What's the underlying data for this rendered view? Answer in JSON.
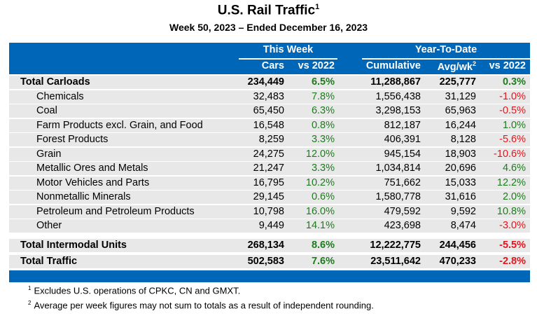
{
  "title": "U.S. Rail Traffic",
  "title_sup": "1",
  "subtitle": "Week 50, 2023 – Ended December 16, 2023",
  "header": {
    "this_week": "This Week",
    "ytd": "Year-To-Date",
    "cars": "Cars",
    "vs2022": "vs 2022",
    "cumulative": "Cumulative",
    "avg": "Avg/wk",
    "avg_sup": "2",
    "vs2022_ytd": "vs 2022"
  },
  "colors": {
    "header": "#0066b8",
    "positive": "#1e7b1e",
    "negative": "#e8141c",
    "row": "#e8e8e8"
  },
  "rows": [
    {
      "label": "Total Carloads",
      "cars": "234,449",
      "vs": "6.5%",
      "cum": "11,288,867",
      "avg": "225,777",
      "vsy": "0.3%"
    },
    {
      "label": "Chemicals",
      "cars": "32,483",
      "vs": "7.8%",
      "cum": "1,556,438",
      "avg": "31,129",
      "vsy": "-1.0%"
    },
    {
      "label": "Coal",
      "cars": "65,450",
      "vs": "6.3%",
      "cum": "3,298,153",
      "avg": "65,963",
      "vsy": "-0.5%"
    },
    {
      "label": "Farm Products excl. Grain, and Food",
      "cars": "16,548",
      "vs": "0.8%",
      "cum": "812,187",
      "avg": "16,244",
      "vsy": "1.0%"
    },
    {
      "label": "Forest Products",
      "cars": "8,259",
      "vs": "3.3%",
      "cum": "406,391",
      "avg": "8,128",
      "vsy": "-5.6%"
    },
    {
      "label": "Grain",
      "cars": "24,275",
      "vs": "12.0%",
      "cum": "945,154",
      "avg": "18,903",
      "vsy": "-10.6%"
    },
    {
      "label": "Metallic Ores and Metals",
      "cars": "21,247",
      "vs": "3.3%",
      "cum": "1,034,814",
      "avg": "20,696",
      "vsy": "4.6%"
    },
    {
      "label": "Motor Vehicles and Parts",
      "cars": "16,795",
      "vs": "10.2%",
      "cum": "751,662",
      "avg": "15,033",
      "vsy": "12.2%"
    },
    {
      "label": "Nonmetallic Minerals",
      "cars": "29,145",
      "vs": "0.6%",
      "cum": "1,580,778",
      "avg": "31,616",
      "vsy": "2.0%"
    },
    {
      "label": "Petroleum and Petroleum Products",
      "cars": "10,798",
      "vs": "16.0%",
      "cum": "479,592",
      "avg": "9,592",
      "vsy": "10.8%"
    },
    {
      "label": "Other",
      "cars": "9,449",
      "vs": "14.1%",
      "cum": "423,698",
      "avg": "8,474",
      "vsy": "-3.0%"
    },
    {
      "label": "Total Intermodal Units",
      "cars": "268,134",
      "vs": "8.6%",
      "cum": "12,222,775",
      "avg": "244,456",
      "vsy": "-5.5%"
    },
    {
      "label": "Total Traffic",
      "cars": "502,583",
      "vs": "7.6%",
      "cum": "23,511,642",
      "avg": "470,233",
      "vsy": "-2.8%"
    }
  ],
  "footnotes": [
    {
      "mark": "1",
      "text": "Excludes U.S. operations of CPKC, CN and GMXT."
    },
    {
      "mark": "2",
      "text": "Average per week figures may not sum to totals as a result of independent rounding."
    }
  ]
}
